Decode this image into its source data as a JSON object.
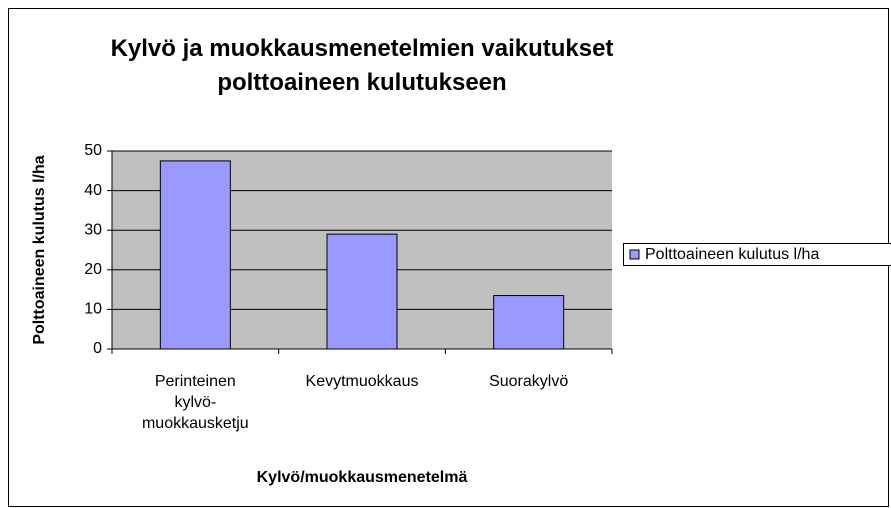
{
  "chart_data": {
    "type": "bar",
    "title": "Kylvö ja muokkausmenetelmien vaikutukset polttoaineen kulutukseen",
    "x_label": "Kylvö/muokkausmenetelmä",
    "y_label": "Polttoaineen kulutus l/ha",
    "categories": [
      "Perinteinen kylvö-muokkausketju",
      "Kevytmuokkaus",
      "Suorakylvö"
    ],
    "series": [
      {
        "name": "Polttoaineen kulutus l/ha",
        "color": "#9999ff",
        "values": [
          47.5,
          29,
          13.5
        ]
      }
    ],
    "ylim": [
      0,
      50
    ],
    "yticks": [
      0,
      10,
      20,
      30,
      40,
      50
    ],
    "grid": true,
    "legend": "right"
  }
}
